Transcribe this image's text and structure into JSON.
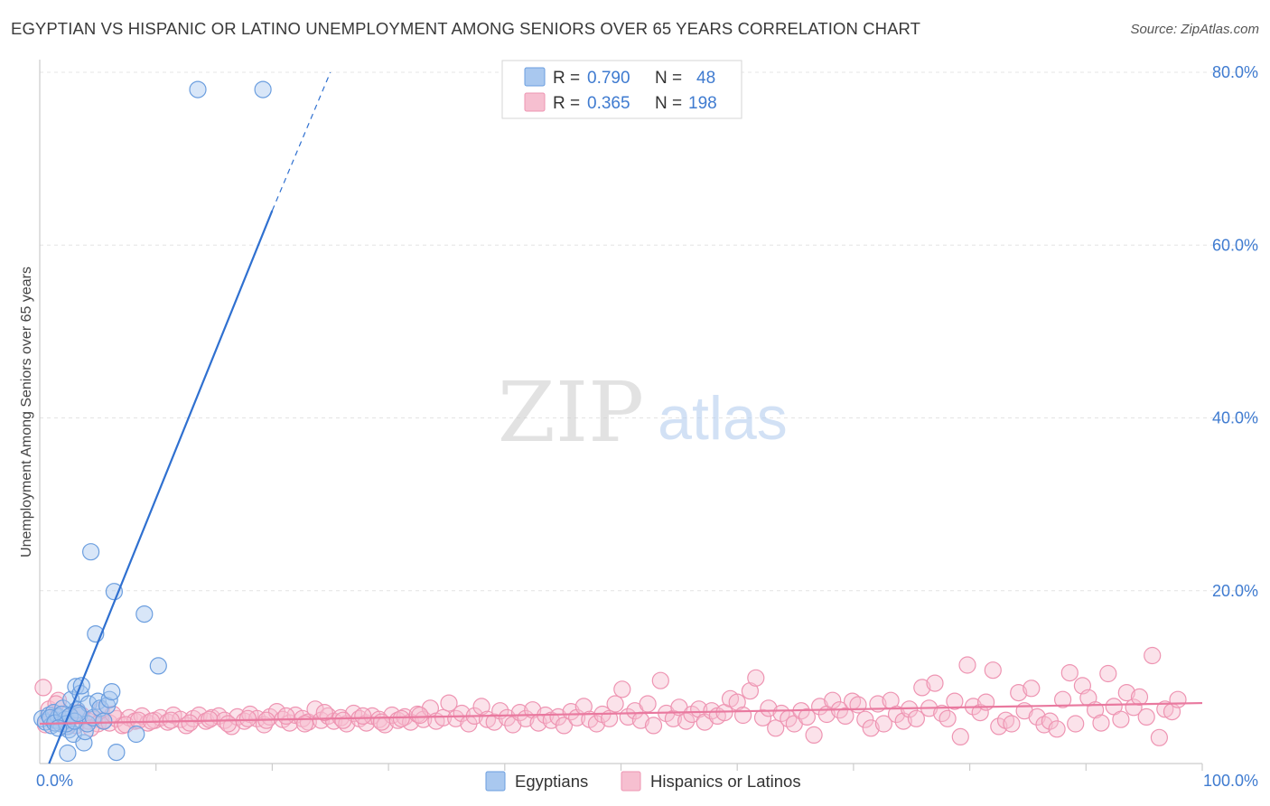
{
  "title": "EGYPTIAN VS HISPANIC OR LATINO UNEMPLOYMENT AMONG SENIORS OVER 65 YEARS CORRELATION CHART",
  "source": "Source: ZipAtlas.com",
  "watermark": {
    "zip": "ZIP",
    "atlas": "atlas"
  },
  "colors": {
    "egyptians_fill": "#a9c8ef",
    "egyptians_stroke": "#6b9edf",
    "egyptians_line": "#2f70d0",
    "hispanics_fill": "#f6bfd0",
    "hispanics_stroke": "#ee94b2",
    "hispanics_line": "#e9799f",
    "axis_label_color": "#3f7bd0",
    "grid": "#e4e4e4"
  },
  "legend_stats": [
    {
      "r_label": "R = ",
      "r_value": "0.790",
      "n_label": "N = ",
      "n_value": "48"
    },
    {
      "r_label": "R = ",
      "r_value": "0.365",
      "n_label": "N = ",
      "n_value": "198"
    }
  ],
  "chart_data": {
    "type": "scatter",
    "title": "EGYPTIAN VS HISPANIC OR LATINO UNEMPLOYMENT AMONG SENIORS OVER 65 YEARS CORRELATION CHART",
    "xlabel": "",
    "ylabel": "Unemployment Among Seniors over 65 years",
    "xlim": [
      0,
      100
    ],
    "ylim": [
      0,
      80
    ],
    "x_tick_labels": [
      {
        "value": 0,
        "label": "0.0%"
      },
      {
        "value": 100,
        "label": "100.0%"
      }
    ],
    "y_tick_labels": [
      {
        "value": 20,
        "label": "20.0%"
      },
      {
        "value": 40,
        "label": "40.0%"
      },
      {
        "value": 60,
        "label": "60.0%"
      },
      {
        "value": 80,
        "label": "80.0%"
      }
    ],
    "x_minor_ticks": [
      10,
      20,
      30,
      40,
      50,
      60,
      70,
      80,
      90
    ],
    "grid": true,
    "legend_position": "bottom",
    "series": [
      {
        "name": "Egyptians",
        "color": "#a9c8ef",
        "r": 0.79,
        "n": 48,
        "trend": {
          "x0": 0.8,
          "y0": 0.0,
          "x1": 20.0,
          "y1": 64.0,
          "dash_x1": 25.0,
          "dash_y1": 80.0
        },
        "points": [
          [
            0.2,
            5.2
          ],
          [
            0.5,
            4.8
          ],
          [
            0.8,
            5.6
          ],
          [
            1.0,
            4.4
          ],
          [
            1.2,
            5.9
          ],
          [
            1.4,
            5.0
          ],
          [
            1.6,
            5.4
          ],
          [
            1.8,
            4.6
          ],
          [
            2.0,
            6.4
          ],
          [
            2.2,
            5.1
          ],
          [
            2.4,
            4.3
          ],
          [
            2.5,
            3.9
          ],
          [
            2.7,
            7.4
          ],
          [
            2.9,
            3.4
          ],
          [
            3.1,
            8.9
          ],
          [
            3.2,
            6.2
          ],
          [
            3.4,
            5.6
          ],
          [
            3.5,
            8.1
          ],
          [
            3.6,
            9.0
          ],
          [
            3.8,
            2.4
          ],
          [
            3.9,
            3.7
          ],
          [
            4.1,
            4.6
          ],
          [
            4.2,
            6.9
          ],
          [
            4.4,
            24.5
          ],
          [
            4.6,
            5.3
          ],
          [
            4.8,
            15.0
          ],
          [
            5.0,
            7.2
          ],
          [
            5.2,
            6.4
          ],
          [
            5.5,
            4.9
          ],
          [
            5.8,
            6.7
          ],
          [
            6.0,
            7.4
          ],
          [
            6.2,
            8.3
          ],
          [
            6.4,
            19.9
          ],
          [
            6.6,
            1.3
          ],
          [
            8.3,
            3.4
          ],
          [
            9.0,
            17.3
          ],
          [
            10.2,
            11.3
          ],
          [
            13.6,
            78.0
          ],
          [
            19.2,
            78.0
          ],
          [
            0.9,
            5.3
          ],
          [
            1.3,
            4.7
          ],
          [
            1.9,
            5.7
          ],
          [
            2.3,
            4.6
          ],
          [
            2.6,
            5.5
          ],
          [
            3.0,
            4.9
          ],
          [
            3.3,
            5.8
          ],
          [
            1.6,
            4.1
          ],
          [
            2.4,
            1.2
          ]
        ]
      },
      {
        "name": "Hispanics or Latinos",
        "color": "#f6bfd0",
        "r": 0.365,
        "n": 198,
        "trend": {
          "x0": 0.0,
          "y0": 4.6,
          "x1": 100.0,
          "y1": 7.0
        },
        "points": [
          [
            0.3,
            8.8
          ],
          [
            0.8,
            6.3
          ],
          [
            1.1,
            5.1
          ],
          [
            1.6,
            7.3
          ],
          [
            2.0,
            4.8
          ],
          [
            2.6,
            5.4
          ],
          [
            3.1,
            4.4
          ],
          [
            3.6,
            5.6
          ],
          [
            4.2,
            4.9
          ],
          [
            4.7,
            5.1
          ],
          [
            5.0,
            4.6
          ],
          [
            5.5,
            5.0
          ],
          [
            6.0,
            4.7
          ],
          [
            6.6,
            5.2
          ],
          [
            7.1,
            4.4
          ],
          [
            7.7,
            5.3
          ],
          [
            8.2,
            4.9
          ],
          [
            8.8,
            5.5
          ],
          [
            9.3,
            4.7
          ],
          [
            9.9,
            5.0
          ],
          [
            10.4,
            5.3
          ],
          [
            11.0,
            4.8
          ],
          [
            11.5,
            5.6
          ],
          [
            12.1,
            5.1
          ],
          [
            12.6,
            4.4
          ],
          [
            13.2,
            5.2
          ],
          [
            13.7,
            5.6
          ],
          [
            14.3,
            4.9
          ],
          [
            14.8,
            5.3
          ],
          [
            15.4,
            5.5
          ],
          [
            15.9,
            5.0
          ],
          [
            16.5,
            4.3
          ],
          [
            17.0,
            5.4
          ],
          [
            17.6,
            4.9
          ],
          [
            18.1,
            5.7
          ],
          [
            18.7,
            5.2
          ],
          [
            19.3,
            4.5
          ],
          [
            19.8,
            5.4
          ],
          [
            20.4,
            6.0
          ],
          [
            20.9,
            5.1
          ],
          [
            21.5,
            4.7
          ],
          [
            22.0,
            5.6
          ],
          [
            22.6,
            5.2
          ],
          [
            23.1,
            4.8
          ],
          [
            23.7,
            6.3
          ],
          [
            24.2,
            5.0
          ],
          [
            24.8,
            5.5
          ],
          [
            25.3,
            4.9
          ],
          [
            25.9,
            5.3
          ],
          [
            26.4,
            4.6
          ],
          [
            27.0,
            5.8
          ],
          [
            27.5,
            5.2
          ],
          [
            28.1,
            4.7
          ],
          [
            28.6,
            5.5
          ],
          [
            29.2,
            5.1
          ],
          [
            29.7,
            4.5
          ],
          [
            30.3,
            5.6
          ],
          [
            30.8,
            5.0
          ],
          [
            31.4,
            5.4
          ],
          [
            31.9,
            4.8
          ],
          [
            32.5,
            5.7
          ],
          [
            33.0,
            5.1
          ],
          [
            33.6,
            6.4
          ],
          [
            34.1,
            4.9
          ],
          [
            34.7,
            5.3
          ],
          [
            35.2,
            7.0
          ],
          [
            35.8,
            5.2
          ],
          [
            36.3,
            5.8
          ],
          [
            36.9,
            4.6
          ],
          [
            37.4,
            5.5
          ],
          [
            38.0,
            6.6
          ],
          [
            38.5,
            5.1
          ],
          [
            39.1,
            4.8
          ],
          [
            39.6,
            6.1
          ],
          [
            40.2,
            5.3
          ],
          [
            40.7,
            4.5
          ],
          [
            41.3,
            5.9
          ],
          [
            41.8,
            5.2
          ],
          [
            42.4,
            6.2
          ],
          [
            42.9,
            4.7
          ],
          [
            43.5,
            5.6
          ],
          [
            44.0,
            5.0
          ],
          [
            44.6,
            5.4
          ],
          [
            45.1,
            4.4
          ],
          [
            45.7,
            6.0
          ],
          [
            46.2,
            5.3
          ],
          [
            46.8,
            6.6
          ],
          [
            47.3,
            5.1
          ],
          [
            47.9,
            4.6
          ],
          [
            48.4,
            5.7
          ],
          [
            49.0,
            5.2
          ],
          [
            49.5,
            6.9
          ],
          [
            50.1,
            8.6
          ],
          [
            50.6,
            5.4
          ],
          [
            51.2,
            6.1
          ],
          [
            51.7,
            5.0
          ],
          [
            52.3,
            6.9
          ],
          [
            52.8,
            4.4
          ],
          [
            53.4,
            9.6
          ],
          [
            53.9,
            5.8
          ],
          [
            54.5,
            5.2
          ],
          [
            55.0,
            6.5
          ],
          [
            55.6,
            4.9
          ],
          [
            56.1,
            5.7
          ],
          [
            56.7,
            6.3
          ],
          [
            57.2,
            4.8
          ],
          [
            57.8,
            6.1
          ],
          [
            58.3,
            5.5
          ],
          [
            58.9,
            5.9
          ],
          [
            59.4,
            7.5
          ],
          [
            60.0,
            7.1
          ],
          [
            60.5,
            5.6
          ],
          [
            61.1,
            8.4
          ],
          [
            61.6,
            9.9
          ],
          [
            62.2,
            5.3
          ],
          [
            62.7,
            6.4
          ],
          [
            63.3,
            4.1
          ],
          [
            63.8,
            5.8
          ],
          [
            64.4,
            5.2
          ],
          [
            64.9,
            4.6
          ],
          [
            65.5,
            6.1
          ],
          [
            66.0,
            5.4
          ],
          [
            66.6,
            3.3
          ],
          [
            67.1,
            6.6
          ],
          [
            67.7,
            5.7
          ],
          [
            68.2,
            7.3
          ],
          [
            68.8,
            6.2
          ],
          [
            69.3,
            5.5
          ],
          [
            69.9,
            7.2
          ],
          [
            70.4,
            6.8
          ],
          [
            71.0,
            5.1
          ],
          [
            71.5,
            4.1
          ],
          [
            72.1,
            6.9
          ],
          [
            72.6,
            4.6
          ],
          [
            73.2,
            7.3
          ],
          [
            73.7,
            5.7
          ],
          [
            74.3,
            4.9
          ],
          [
            74.8,
            6.3
          ],
          [
            75.4,
            5.2
          ],
          [
            75.9,
            8.8
          ],
          [
            76.5,
            6.4
          ],
          [
            77.0,
            9.3
          ],
          [
            77.6,
            5.8
          ],
          [
            78.1,
            5.2
          ],
          [
            78.7,
            7.2
          ],
          [
            79.2,
            3.1
          ],
          [
            79.8,
            11.4
          ],
          [
            80.3,
            6.6
          ],
          [
            80.9,
            5.9
          ],
          [
            81.4,
            7.1
          ],
          [
            82.0,
            10.8
          ],
          [
            82.5,
            4.3
          ],
          [
            83.1,
            5.0
          ],
          [
            83.6,
            4.6
          ],
          [
            84.2,
            8.2
          ],
          [
            84.7,
            6.1
          ],
          [
            85.3,
            8.7
          ],
          [
            85.8,
            5.4
          ],
          [
            86.4,
            4.5
          ],
          [
            86.9,
            4.9
          ],
          [
            87.5,
            4.0
          ],
          [
            88.0,
            7.4
          ],
          [
            88.6,
            10.5
          ],
          [
            89.1,
            4.6
          ],
          [
            89.7,
            9.0
          ],
          [
            90.2,
            7.6
          ],
          [
            90.8,
            6.2
          ],
          [
            91.3,
            4.7
          ],
          [
            91.9,
            10.4
          ],
          [
            92.4,
            6.6
          ],
          [
            93.0,
            5.1
          ],
          [
            93.5,
            8.2
          ],
          [
            94.1,
            6.5
          ],
          [
            94.6,
            7.7
          ],
          [
            95.2,
            5.4
          ],
          [
            95.7,
            12.5
          ],
          [
            96.3,
            3.0
          ],
          [
            96.8,
            6.3
          ],
          [
            97.4,
            6.0
          ],
          [
            97.9,
            7.4
          ],
          [
            0.5,
            4.5
          ],
          [
            1.4,
            6.9
          ],
          [
            2.3,
            4.3
          ],
          [
            3.3,
            5.9
          ],
          [
            4.4,
            4.1
          ],
          [
            5.3,
            6.2
          ],
          [
            6.3,
            5.7
          ],
          [
            7.4,
            4.5
          ],
          [
            8.5,
            5.0
          ],
          [
            9.6,
            4.9
          ],
          [
            11.3,
            5.0
          ],
          [
            12.9,
            4.7
          ],
          [
            14.6,
            5.1
          ],
          [
            16.2,
            4.6
          ],
          [
            17.9,
            5.2
          ],
          [
            19.5,
            5.0
          ],
          [
            21.2,
            5.5
          ],
          [
            22.8,
            4.6
          ],
          [
            24.5,
            5.9
          ],
          [
            26.1,
            5.0
          ],
          [
            27.8,
            5.5
          ],
          [
            29.4,
            4.8
          ],
          [
            31.1,
            5.2
          ],
          [
            32.7,
            5.6
          ]
        ]
      }
    ]
  }
}
